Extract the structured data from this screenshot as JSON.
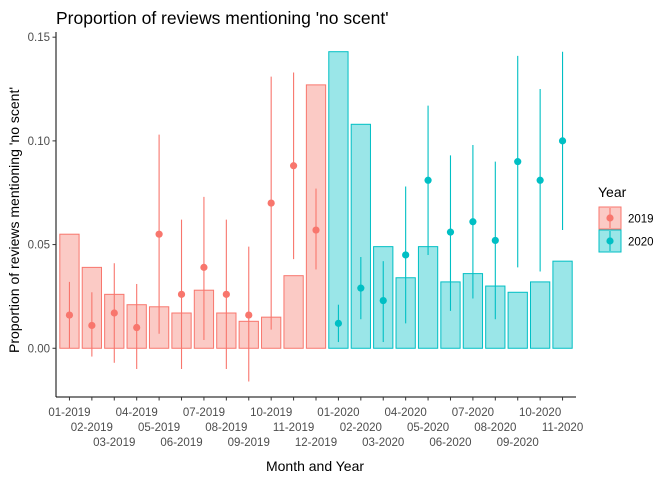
{
  "chart_data": {
    "type": "bar",
    "title": "Proportion of reviews mentioning 'no scent'",
    "xlabel": "Month and Year",
    "ylabel": "Proportion of reviews mentioning 'no scent'",
    "ylim": [
      -0.0235,
      0.1525
    ],
    "yticks": [
      0.0,
      0.05,
      0.1,
      0.15
    ],
    "ytick_labels": [
      "0.00",
      "0.05",
      "0.10",
      "0.15"
    ],
    "grid": false,
    "legend_position": "right",
    "legend_title": "Year",
    "categories": [
      "01-2019",
      "02-2019",
      "03-2019",
      "04-2019",
      "05-2019",
      "06-2019",
      "07-2019",
      "08-2019",
      "09-2019",
      "10-2019",
      "11-2019",
      "12-2019",
      "01-2020",
      "02-2020",
      "03-2020",
      "04-2020",
      "05-2020",
      "06-2020",
      "07-2020",
      "08-2020",
      "09-2020",
      "10-2020",
      "11-2020"
    ],
    "series": [
      {
        "name": "2019",
        "color": "#F8766D",
        "fill": "#FBCAC5",
        "start_index": 0,
        "bar_values": [
          0.055,
          0.039,
          0.026,
          0.021,
          0.02,
          0.017,
          0.028,
          0.017,
          0.013,
          0.015,
          0.035,
          0.127
        ],
        "point_values": [
          0.016,
          0.011,
          0.017,
          0.01,
          0.055,
          0.026,
          0.039,
          0.026,
          0.016,
          0.07,
          0.088,
          0.057
        ],
        "ci_low": [
          0.0,
          -0.004,
          -0.007,
          -0.01,
          0.007,
          -0.01,
          0.004,
          -0.01,
          -0.016,
          0.009,
          0.043,
          0.038
        ],
        "ci_high": [
          0.032,
          0.027,
          0.041,
          0.031,
          0.103,
          0.062,
          0.073,
          0.062,
          0.049,
          0.131,
          0.133,
          0.077
        ]
      },
      {
        "name": "2020",
        "color": "#00BFC4",
        "fill": "#9AE6E8",
        "start_index": 12,
        "bar_values": [
          0.143,
          0.108,
          0.049,
          0.034,
          0.049,
          0.032,
          0.036,
          0.03,
          0.027,
          0.032,
          0.042
        ],
        "point_values": [
          0.012,
          0.029,
          0.023,
          0.045,
          0.081,
          0.056,
          0.061,
          0.052,
          0.09,
          0.081,
          0.1
        ],
        "ci_low": [
          0.003,
          0.014,
          0.003,
          0.012,
          0.045,
          0.018,
          0.024,
          0.014,
          0.039,
          0.037,
          0.057
        ],
        "ci_high": [
          0.021,
          0.044,
          0.042,
          0.078,
          0.117,
          0.093,
          0.098,
          0.09,
          0.141,
          0.125,
          0.143
        ]
      }
    ]
  }
}
